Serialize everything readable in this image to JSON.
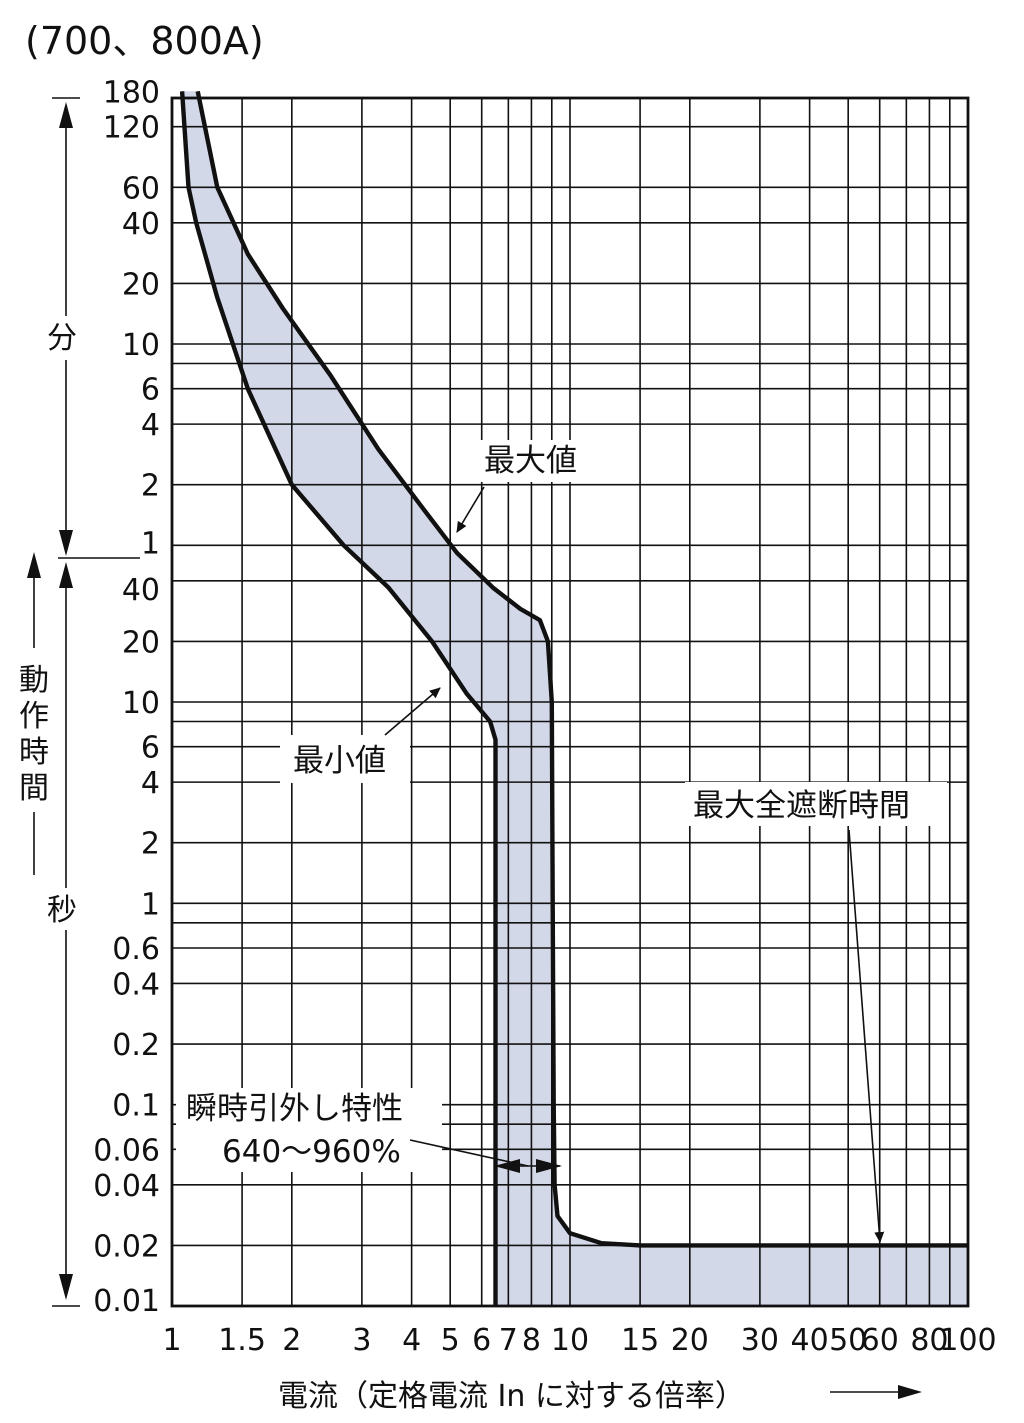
{
  "title": "(700、800A)",
  "chart_data": {
    "type": "area",
    "x_axis": {
      "label": "電流（定格電流 In に対する倍率）",
      "scale": "log",
      "range": [
        1,
        100
      ],
      "ticks": [
        1,
        1.5,
        2,
        3,
        4,
        5,
        6,
        7,
        8,
        10,
        15,
        20,
        30,
        40,
        50,
        60,
        80,
        100
      ],
      "tick_labels": [
        "1",
        "1.5",
        "2",
        "3",
        "4",
        "5",
        "6",
        "7",
        "8",
        "10",
        "15",
        "20",
        "30",
        "40",
        "50",
        "60",
        "80",
        "100"
      ]
    },
    "y_axis": {
      "label": "動作時間",
      "scale": "log",
      "minutes": {
        "label": "分",
        "range": [
          1,
          180
        ],
        "ticks": [
          1,
          2,
          4,
          6,
          10,
          20,
          40,
          60,
          120,
          180
        ],
        "tick_labels": [
          "1",
          "2",
          "4",
          "6",
          "10",
          "20",
          "40",
          "60",
          "120",
          "180"
        ]
      },
      "seconds": {
        "label": "秒",
        "range": [
          0.01,
          60
        ],
        "ticks": [
          0.01,
          0.02,
          0.04,
          0.06,
          0.1,
          0.2,
          0.4,
          0.6,
          1,
          2,
          4,
          6,
          10,
          20,
          40
        ],
        "tick_labels": [
          "0.01",
          "0.02",
          "0.04",
          "0.06",
          "0.1",
          "0.2",
          "0.4",
          "0.6",
          "1",
          "2",
          "4",
          "6",
          "10",
          "20",
          "40"
        ]
      }
    },
    "grid": true,
    "series": [
      {
        "name": "最大値",
        "points_x_multiple_y_seconds": [
          [
            1.16,
            10800
          ],
          [
            1.3,
            3600
          ],
          [
            1.55,
            1680
          ],
          [
            1.9,
            900
          ],
          [
            2.5,
            420
          ],
          [
            3.3,
            180
          ],
          [
            4.3,
            90
          ],
          [
            5.2,
            55
          ],
          [
            6.4,
            37
          ],
          [
            7.5,
            29
          ],
          [
            8.4,
            25.5
          ],
          [
            8.8,
            20
          ],
          [
            9.0,
            10
          ],
          [
            9.05,
            1
          ],
          [
            9.1,
            0.1
          ],
          [
            9.15,
            0.04
          ],
          [
            9.3,
            0.028
          ],
          [
            10,
            0.023
          ],
          [
            12,
            0.0205
          ],
          [
            15,
            0.02
          ],
          [
            100,
            0.02
          ]
        ]
      },
      {
        "name": "最小値",
        "points_x_multiple_y_seconds": [
          [
            1.06,
            10800
          ],
          [
            1.1,
            3600
          ],
          [
            1.15,
            2400
          ],
          [
            1.3,
            1020
          ],
          [
            1.55,
            360
          ],
          [
            2.0,
            120
          ],
          [
            2.7,
            60
          ],
          [
            3.5,
            37
          ],
          [
            4.5,
            20
          ],
          [
            5.5,
            11
          ],
          [
            6.3,
            8
          ],
          [
            6.5,
            6.5
          ],
          [
            6.5,
            0.01
          ]
        ]
      }
    ],
    "annotations": [
      {
        "text": "最大値",
        "target": "最大値"
      },
      {
        "text": "最小値",
        "target": "最小値"
      },
      {
        "text": "最大全遮断時間",
        "value_seconds": 0.02
      },
      {
        "text": "瞬時引外し特性",
        "detail": "640～960%",
        "range_x_percent": [
          640,
          960
        ]
      }
    ],
    "colors": {
      "band_fill": "#d3d8e8",
      "lines": "#111111"
    }
  }
}
